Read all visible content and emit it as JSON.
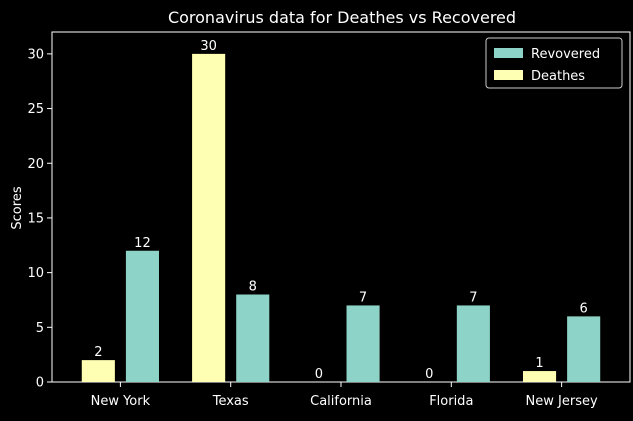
{
  "chart_data": {
    "type": "bar",
    "title": "Coronavirus data for Deathes vs Recovered",
    "xlabel": "",
    "ylabel": "Scores",
    "categories": [
      "New York",
      "Texas",
      "California",
      "Florida",
      "New Jersey"
    ],
    "series": [
      {
        "name": "Deathes",
        "values": [
          2,
          30,
          0,
          0,
          1
        ],
        "color": "#ffffb3"
      },
      {
        "name": "Revovered",
        "values": [
          12,
          8,
          7,
          7,
          6
        ],
        "color": "#8dd3c7"
      }
    ],
    "legend_order": [
      "Revovered",
      "Deathes"
    ],
    "ylim": [
      0,
      32
    ],
    "yticks": [
      0,
      5,
      10,
      15,
      20,
      25,
      30
    ],
    "grid": false,
    "legend_position": "top-right",
    "background": "#000000",
    "text_color": "#ffffff"
  }
}
